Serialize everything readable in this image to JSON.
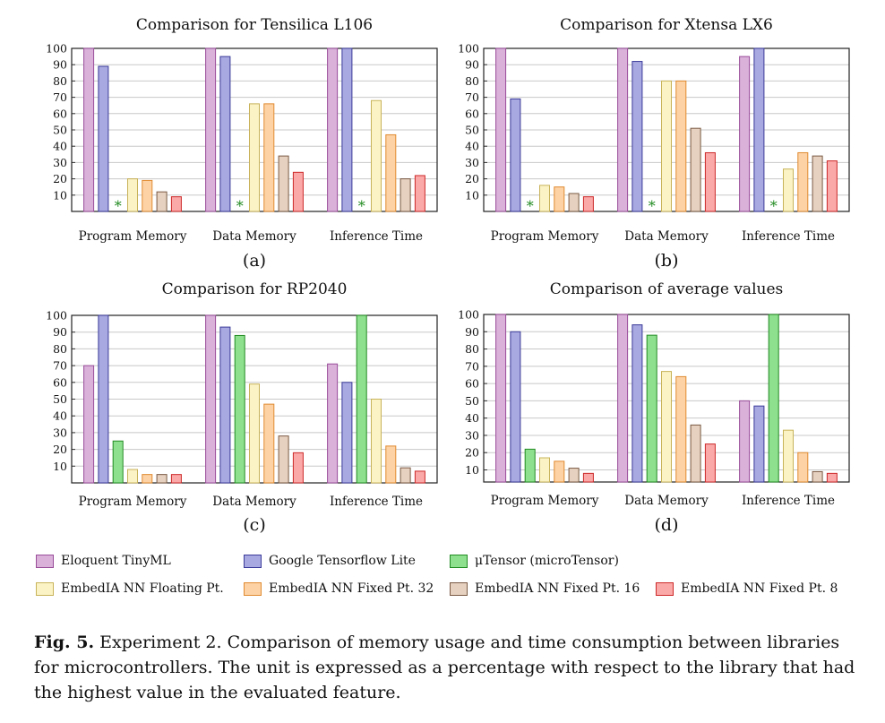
{
  "chart_data": [
    {
      "type": "bar",
      "title": "Comparison for Tensilica L106",
      "sublabel": "(a)",
      "categories": [
        "Program Memory",
        "Data Memory",
        "Inference Time"
      ],
      "ylim": [
        0,
        100
      ],
      "yticks": [
        10,
        20,
        30,
        40,
        50,
        60,
        70,
        80,
        90,
        100
      ],
      "grid": true,
      "series": [
        {
          "name": "Eloquent TinyML",
          "values": [
            100,
            100,
            100
          ]
        },
        {
          "name": "Google Tensorflow Lite",
          "values": [
            89,
            95,
            100
          ]
        },
        {
          "name": "μTensor (microTensor)",
          "values": [
            null,
            null,
            null
          ],
          "markers": [
            "*",
            "*",
            "*"
          ]
        },
        {
          "name": "EmbedIA NN Floating Pt.",
          "values": [
            20,
            66,
            68
          ]
        },
        {
          "name": "EmbedIA NN Fixed Pt. 32",
          "values": [
            19,
            66,
            47
          ]
        },
        {
          "name": "EmbedIA NN Fixed Pt. 16",
          "values": [
            12,
            34,
            20
          ]
        },
        {
          "name": "EmbedIA NN Fixed Pt. 8",
          "values": [
            9,
            24,
            22
          ]
        }
      ]
    },
    {
      "type": "bar",
      "title": "Comparison for Xtensa LX6",
      "sublabel": "(b)",
      "categories": [
        "Program Memory",
        "Data Memory",
        "Inference Time"
      ],
      "ylim": [
        0,
        100
      ],
      "yticks": [
        10,
        20,
        30,
        40,
        50,
        60,
        70,
        80,
        90,
        100
      ],
      "grid": true,
      "series": [
        {
          "name": "Eloquent TinyML",
          "values": [
            100,
            100,
            95
          ]
        },
        {
          "name": "Google Tensorflow Lite",
          "values": [
            69,
            92,
            100
          ]
        },
        {
          "name": "μTensor (microTensor)",
          "values": [
            null,
            null,
            null
          ],
          "markers": [
            "*",
            "*",
            "*"
          ]
        },
        {
          "name": "EmbedIA NN Floating Pt.",
          "values": [
            16,
            80,
            26
          ]
        },
        {
          "name": "EmbedIA NN Fixed Pt. 32",
          "values": [
            15,
            80,
            36
          ]
        },
        {
          "name": "EmbedIA NN Fixed Pt. 16",
          "values": [
            11,
            51,
            34
          ]
        },
        {
          "name": "EmbedIA NN Fixed Pt. 8",
          "values": [
            9,
            36,
            31
          ]
        }
      ]
    },
    {
      "type": "bar",
      "title": "Comparison for RP2040",
      "sublabel": "(c)",
      "categories": [
        "Program Memory",
        "Data Memory",
        "Inference Time"
      ],
      "ylim": [
        0,
        100
      ],
      "yticks": [
        10,
        20,
        30,
        40,
        50,
        60,
        70,
        80,
        90,
        100
      ],
      "grid": true,
      "series": [
        {
          "name": "Eloquent TinyML",
          "values": [
            70,
            100,
            71
          ]
        },
        {
          "name": "Google Tensorflow Lite",
          "values": [
            100,
            93,
            60
          ]
        },
        {
          "name": "μTensor (microTensor)",
          "values": [
            25,
            88,
            100
          ]
        },
        {
          "name": "EmbedIA NN Floating Pt.",
          "values": [
            8,
            59,
            50
          ]
        },
        {
          "name": "EmbedIA NN Fixed Pt. 32",
          "values": [
            5,
            47,
            22
          ]
        },
        {
          "name": "EmbedIA NN Fixed Pt. 16",
          "values": [
            5,
            28,
            9
          ]
        },
        {
          "name": "EmbedIA NN Fixed Pt. 8",
          "values": [
            5,
            18,
            7
          ]
        }
      ]
    },
    {
      "type": "bar",
      "title": "Comparison of average values",
      "sublabel": "(d)",
      "categories": [
        "Program Memory",
        "Data Memory",
        "Inference Time"
      ],
      "ylim": [
        3,
        100
      ],
      "yticks": [
        10,
        20,
        30,
        40,
        50,
        60,
        70,
        80,
        90,
        100
      ],
      "grid": true,
      "series": [
        {
          "name": "Eloquent TinyML",
          "values": [
            100,
            100,
            50
          ]
        },
        {
          "name": "Google Tensorflow Lite",
          "values": [
            90,
            94,
            47
          ]
        },
        {
          "name": "μTensor (microTensor)",
          "values": [
            22,
            88,
            100
          ]
        },
        {
          "name": "EmbedIA NN Floating Pt.",
          "values": [
            17,
            67,
            33
          ]
        },
        {
          "name": "EmbedIA NN Fixed Pt. 32",
          "values": [
            15,
            64,
            20
          ]
        },
        {
          "name": "EmbedIA NN Fixed Pt. 16",
          "values": [
            11,
            36,
            9
          ]
        },
        {
          "name": "EmbedIA NN Fixed Pt. 8",
          "values": [
            8,
            25,
            8
          ]
        }
      ]
    }
  ],
  "series_styles": [
    {
      "fill": "#d9b1d9",
      "stroke": "#994d99"
    },
    {
      "fill": "#a9a9e1",
      "stroke": "#3a3a9a"
    },
    {
      "fill": "#8ee08e",
      "stroke": "#228b22"
    },
    {
      "fill": "#fbf3c6",
      "stroke": "#c8b35a"
    },
    {
      "fill": "#fdd3a6",
      "stroke": "#e08a30"
    },
    {
      "fill": "#e6d1c0",
      "stroke": "#7a5a44"
    },
    {
      "fill": "#fba8a8",
      "stroke": "#cc2a2a"
    }
  ],
  "legend": [
    "Eloquent TinyML",
    "Google Tensorflow Lite",
    "μTensor (microTensor)",
    "EmbedIA NN Floating Pt.",
    "EmbedIA NN Fixed Pt. 32",
    "EmbedIA NN Fixed Pt. 16",
    "EmbedIA NN Fixed Pt. 8"
  ],
  "caption": {
    "label": "Fig. 5.",
    "text": " Experiment 2. Comparison of memory usage and time consumption between libraries for microcontrollers. The unit is expressed as a percentage with respect to the library that had the highest value in the evaluated feature."
  }
}
